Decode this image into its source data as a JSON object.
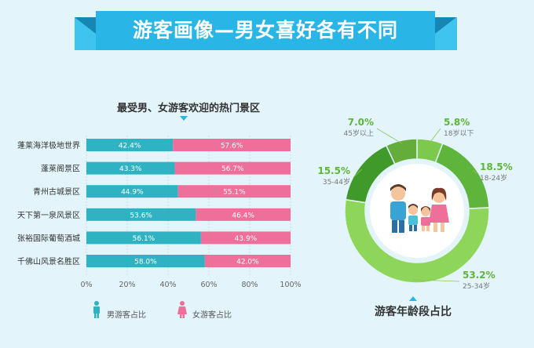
{
  "banner": {
    "title": "游客画像—男女喜好各有不同"
  },
  "bar_section": {
    "title": "最受男、女游客欢迎的热门景区"
  },
  "legend": {
    "male": "男游客占比",
    "female": "女游客占比"
  },
  "donut_section": {
    "title": "游客年龄段占比"
  },
  "colors": {
    "male": "#2fb3c2",
    "female": "#ef6f9b",
    "banner": "#29b6e6",
    "donut": [
      "#7cc94d",
      "#5fb43c",
      "#8ed65a",
      "#3f9a2a",
      "#65ad3a"
    ]
  },
  "chart_data": [
    {
      "type": "bar",
      "orientation": "horizontal",
      "stacked": true,
      "title": "最受男、女游客欢迎的热门景区",
      "categories": [
        "蓬莱海洋极地世界",
        "蓬莱阁景区",
        "青州古城景区",
        "天下第一泉风景区",
        "张裕国际葡萄酒城",
        "千佛山风景名胜区"
      ],
      "series": [
        {
          "name": "男游客占比",
          "values": [
            42.4,
            43.3,
            44.9,
            53.6,
            56.1,
            58.0
          ],
          "labels": [
            "42.4%",
            "43.3%",
            "44.9%",
            "53.6%",
            "56.1%",
            "58.0%"
          ]
        },
        {
          "name": "女游客占比",
          "values": [
            57.6,
            56.7,
            55.1,
            46.4,
            43.9,
            42.0
          ],
          "labels": [
            "57.6%",
            "56.7%",
            "55.1%",
            "46.4%",
            "43.9%",
            "42.0%"
          ]
        }
      ],
      "xlim": [
        0,
        100
      ],
      "xticks": [
        "0%",
        "20%",
        "40%",
        "60%",
        "80%",
        "100%"
      ],
      "legend": "bottom"
    },
    {
      "type": "pie",
      "donut": true,
      "title": "游客年龄段占比",
      "slices": [
        {
          "label": "18岁以下",
          "value": 5.8,
          "pct": "5.8%"
        },
        {
          "label": "18-24岁",
          "value": 18.5,
          "pct": "18.5%"
        },
        {
          "label": "25-34岁",
          "value": 53.2,
          "pct": "53.2%"
        },
        {
          "label": "35-44岁",
          "value": 15.5,
          "pct": "15.5%"
        },
        {
          "label": "45岁以上",
          "value": 7.0,
          "pct": "7.0%"
        }
      ]
    }
  ]
}
